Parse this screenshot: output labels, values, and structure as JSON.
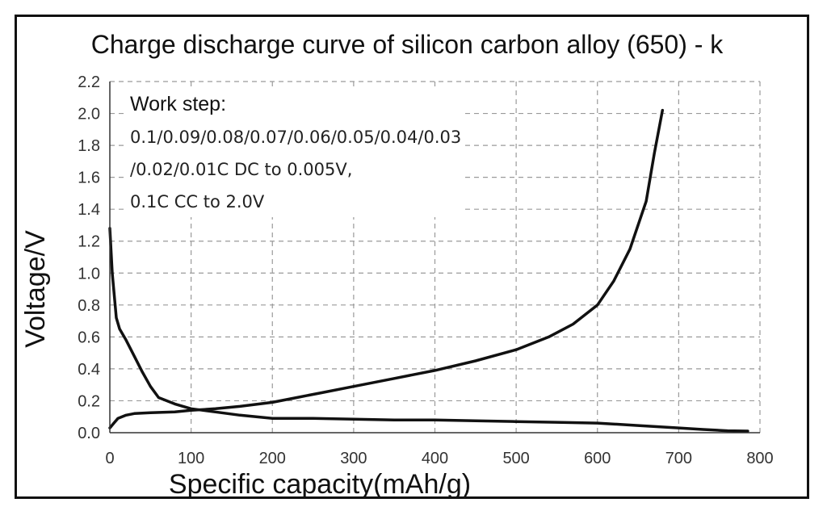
{
  "chart_data": {
    "type": "line",
    "title": "Charge discharge curve of silicon carbon alloy (650) - k",
    "xlabel": "Specific capacity(mAh/g)",
    "ylabel": "Voltage/V",
    "xlim": [
      0,
      800
    ],
    "ylim": [
      0,
      2.2
    ],
    "x_ticks": [
      "0",
      "100",
      "200",
      "300",
      "400",
      "500",
      "600",
      "700",
      "800"
    ],
    "y_ticks": [
      "0.0",
      "0.2",
      "0.4",
      "0.6",
      "0.8",
      "1.0",
      "1.2",
      "1.4",
      "1.6",
      "1.8",
      "2.0",
      "2.2"
    ],
    "grid": true,
    "line_color": "#111111",
    "annotation": [
      "Work step:",
      "0.1/0.09/0.08/0.07/0.06/0.05/0.04/0.03",
      "/0.02/0.01C DC to 0.005V,",
      "0.1C CC to 2.0V"
    ],
    "series": [
      {
        "x": [
          0,
          3,
          8,
          12,
          20,
          30,
          40,
          50,
          60,
          80,
          100,
          130,
          160,
          200,
          250,
          300,
          350,
          400,
          450,
          500,
          550,
          600,
          650,
          700,
          730,
          760,
          785
        ],
        "y": [
          1.28,
          1.0,
          0.72,
          0.65,
          0.58,
          0.48,
          0.38,
          0.29,
          0.22,
          0.18,
          0.15,
          0.13,
          0.11,
          0.09,
          0.09,
          0.085,
          0.08,
          0.08,
          0.075,
          0.07,
          0.065,
          0.06,
          0.045,
          0.03,
          0.02,
          0.012,
          0.01
        ]
      },
      {
        "x": [
          0,
          5,
          10,
          20,
          30,
          50,
          80,
          100,
          130,
          160,
          200,
          230,
          260,
          300,
          350,
          400,
          450,
          500,
          540,
          570,
          600,
          620,
          640,
          660,
          670,
          680
        ],
        "y": [
          0.03,
          0.06,
          0.09,
          0.11,
          0.12,
          0.125,
          0.13,
          0.14,
          0.15,
          0.165,
          0.19,
          0.22,
          0.25,
          0.29,
          0.34,
          0.39,
          0.45,
          0.52,
          0.6,
          0.68,
          0.8,
          0.95,
          1.15,
          1.45,
          1.75,
          2.02
        ]
      }
    ]
  }
}
